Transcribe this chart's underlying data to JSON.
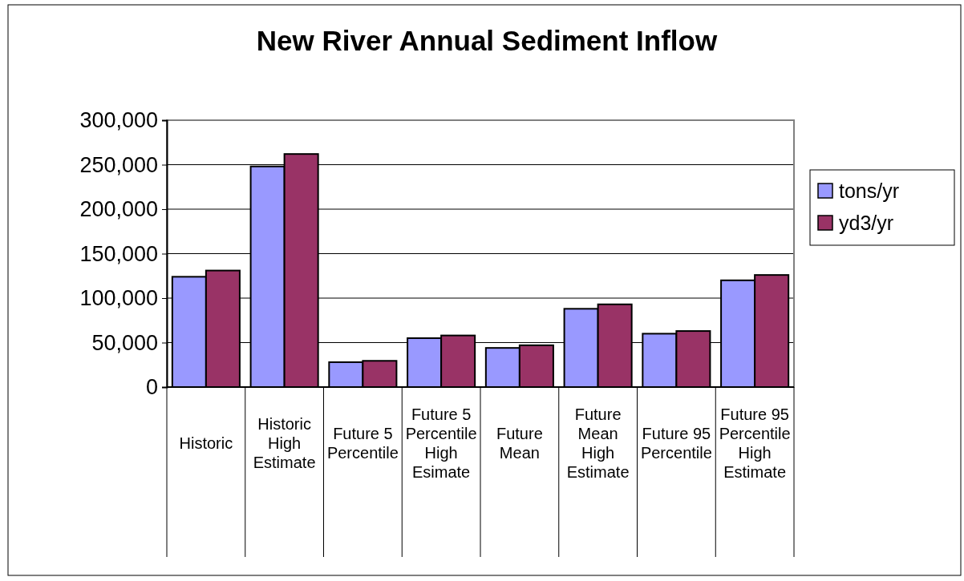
{
  "chart_data": {
    "type": "bar",
    "title": "New River Annual Sediment Inflow",
    "categories": [
      "Historic",
      "Historic High Estimate",
      "Future 5 Percentile",
      "Future 5 Percentile High Esimate",
      "Future Mean",
      "Future Mean High Estimate",
      "Future 95 Percentile",
      "Future 95 Percentile High Estimate"
    ],
    "series": [
      {
        "name": "tons/yr",
        "color": "#9999ff",
        "values": [
          124000,
          248000,
          28000,
          55000,
          44000,
          88000,
          60000,
          120000
        ]
      },
      {
        "name": "yd3/yr",
        "color": "#993366",
        "values": [
          131000,
          262000,
          29500,
          58000,
          47000,
          93000,
          63000,
          126000
        ]
      }
    ],
    "ylim": [
      0,
      300000
    ],
    "yticks": [
      {
        "value": 0,
        "label": "0"
      },
      {
        "value": 50000,
        "label": "50,000"
      },
      {
        "value": 100000,
        "label": "100,000"
      },
      {
        "value": 150000,
        "label": "150,000"
      },
      {
        "value": 200000,
        "label": "200,000"
      },
      {
        "value": 250000,
        "label": "250,000"
      },
      {
        "value": 300000,
        "label": "300,000"
      }
    ],
    "grid": "y",
    "legend": "right"
  }
}
